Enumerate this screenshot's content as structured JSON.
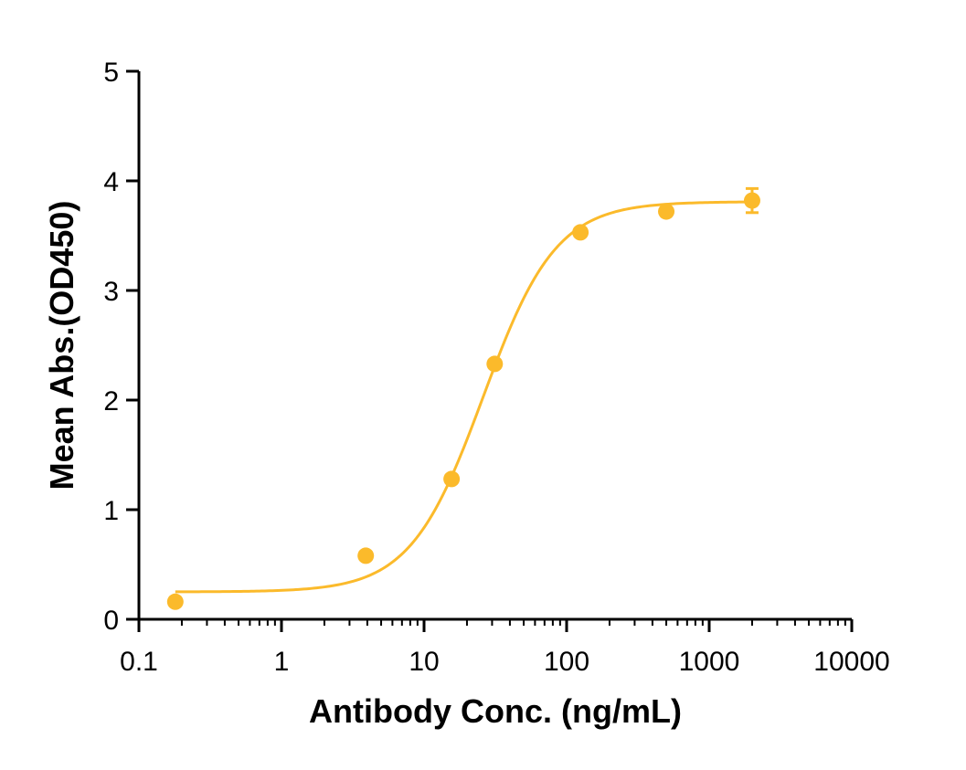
{
  "chart_data": {
    "type": "scatter",
    "title": "",
    "xlabel": "Antibody Conc. (ng/mL)",
    "ylabel": "Mean Abs.(OD450)",
    "x_scale": "log",
    "xlim": [
      0.1,
      10000
    ],
    "ylim": [
      0,
      5
    ],
    "x_ticks": [
      0.1,
      1,
      10,
      100,
      1000,
      10000
    ],
    "x_tick_labels": [
      "0.1",
      "1",
      "10",
      "100",
      "1000",
      "10000"
    ],
    "y_ticks": [
      0,
      1,
      2,
      3,
      4,
      5
    ],
    "y_tick_labels": [
      "0",
      "1",
      "2",
      "3",
      "4",
      "5"
    ],
    "grid": false,
    "legend": "none",
    "color": "#FBBA2B",
    "series": [
      {
        "x": [
          0.18,
          3.9,
          15.6,
          31.3,
          125,
          500,
          2000
        ],
        "y": [
          0.16,
          0.58,
          1.28,
          2.33,
          3.53,
          3.72,
          3.82
        ],
        "error": [
          0,
          0,
          0,
          0,
          0,
          0,
          0.11
        ]
      }
    ],
    "fit": {
      "model": "4PL",
      "bottom": 0.25,
      "top": 3.81,
      "ec50": 26,
      "hill": 1.7,
      "x_range": [
        0.18,
        2000
      ]
    }
  }
}
